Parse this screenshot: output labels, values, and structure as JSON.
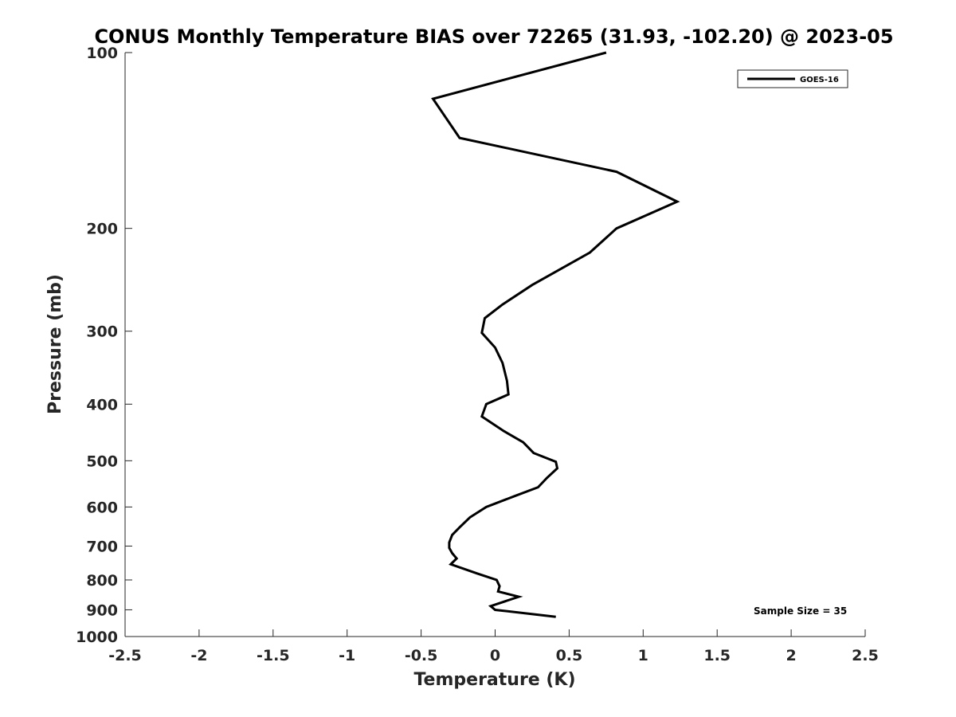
{
  "chart_data": {
    "type": "line",
    "title": "CONUS Monthly Temperature BIAS over 72265 (31.93, -102.20) @ 2023-05",
    "xlabel": "Temperature (K)",
    "ylabel": "Pressure (mb)",
    "xlim": [
      -2.5,
      2.5
    ],
    "ylim": [
      1000,
      100
    ],
    "yscale": "log",
    "y_reversed": true,
    "x_ticks": [
      "-2.5",
      "-2",
      "-1.5",
      "-1",
      "-0.5",
      "0",
      "0.5",
      "1",
      "1.5",
      "2",
      "2.5"
    ],
    "x_tick_values": [
      -2.5,
      -2,
      -1.5,
      -1,
      -0.5,
      0,
      0.5,
      1,
      1.5,
      2,
      2.5
    ],
    "y_ticks": [
      "100",
      "200",
      "300",
      "400",
      "500",
      "600",
      "700",
      "800",
      "900",
      "1000"
    ],
    "y_tick_values": [
      100,
      200,
      300,
      400,
      500,
      600,
      700,
      800,
      900,
      1000
    ],
    "grid": false,
    "legend_position": "top-right",
    "series": [
      {
        "name": "GOES-16",
        "color": "#000000",
        "points": [
          {
            "x": 0.75,
            "y": 100
          },
          {
            "x": -0.42,
            "y": 120
          },
          {
            "x": -0.24,
            "y": 140
          },
          {
            "x": 0.82,
            "y": 160
          },
          {
            "x": 1.23,
            "y": 180
          },
          {
            "x": 0.82,
            "y": 200
          },
          {
            "x": 0.64,
            "y": 220
          },
          {
            "x": 0.25,
            "y": 250
          },
          {
            "x": 0.05,
            "y": 270
          },
          {
            "x": -0.07,
            "y": 285
          },
          {
            "x": -0.09,
            "y": 302
          },
          {
            "x": 0.0,
            "y": 320
          },
          {
            "x": 0.05,
            "y": 340
          },
          {
            "x": 0.08,
            "y": 365
          },
          {
            "x": 0.09,
            "y": 385
          },
          {
            "x": -0.06,
            "y": 400
          },
          {
            "x": -0.09,
            "y": 420
          },
          {
            "x": 0.06,
            "y": 445
          },
          {
            "x": 0.19,
            "y": 465
          },
          {
            "x": 0.26,
            "y": 485
          },
          {
            "x": 0.41,
            "y": 502
          },
          {
            "x": 0.42,
            "y": 515
          },
          {
            "x": 0.35,
            "y": 535
          },
          {
            "x": 0.29,
            "y": 555
          },
          {
            "x": 0.13,
            "y": 575
          },
          {
            "x": -0.06,
            "y": 600
          },
          {
            "x": -0.17,
            "y": 625
          },
          {
            "x": -0.24,
            "y": 650
          },
          {
            "x": -0.29,
            "y": 670
          },
          {
            "x": -0.31,
            "y": 690
          },
          {
            "x": -0.31,
            "y": 705
          },
          {
            "x": -0.29,
            "y": 720
          },
          {
            "x": -0.26,
            "y": 735
          },
          {
            "x": -0.3,
            "y": 752
          },
          {
            "x": -0.12,
            "y": 780
          },
          {
            "x": 0.01,
            "y": 800
          },
          {
            "x": 0.03,
            "y": 820
          },
          {
            "x": 0.02,
            "y": 837
          },
          {
            "x": 0.16,
            "y": 855
          },
          {
            "x": -0.03,
            "y": 887
          },
          {
            "x": 0.0,
            "y": 900
          },
          {
            "x": 0.41,
            "y": 925
          }
        ]
      }
    ],
    "annotation": "Sample Size = 35"
  }
}
